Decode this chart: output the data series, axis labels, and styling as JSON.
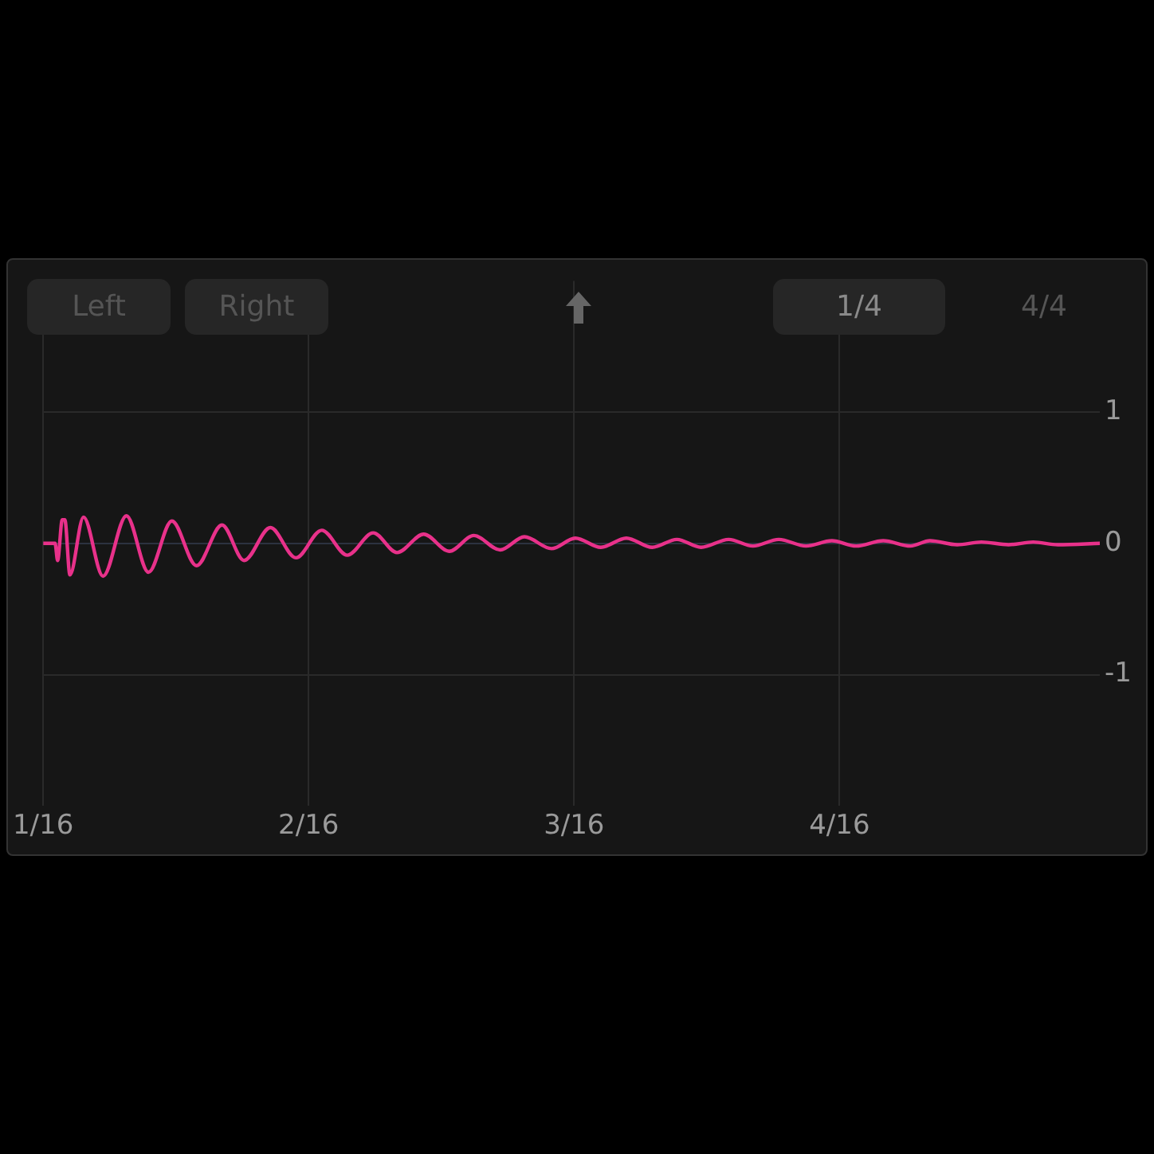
{
  "chart_data": {
    "type": "line",
    "annotations": [
      "Left",
      "Right",
      "1/4",
      "4/4"
    ],
    "x": [
      0.0625,
      0.0653,
      0.0659,
      0.067,
      0.0676,
      0.0688,
      0.072,
      0.0766,
      0.0821,
      0.0873,
      0.0928,
      0.0986,
      0.1046,
      0.1098,
      0.116,
      0.122,
      0.1281,
      0.1341,
      0.1402,
      0.1458,
      0.1521,
      0.1581,
      0.1639,
      0.1701,
      0.1758,
      0.1822,
      0.1878,
      0.1938,
      0.1998,
      0.2059,
      0.2117,
      0.2174,
      0.2239,
      0.2296,
      0.2357,
      0.2421,
      0.2482,
      0.2539,
      0.2603,
      0.2667,
      0.2713,
      0.2777,
      0.2834,
      0.2898,
      0.2956,
      0.3014,
      0.3113
    ],
    "series": [
      {
        "color": "#e8318a",
        "values": [
          0,
          0,
          -0.13,
          0.18,
          0.18,
          -0.24,
          0.2,
          -0.25,
          0.21,
          -0.22,
          0.17,
          -0.17,
          0.14,
          -0.13,
          0.12,
          -0.11,
          0.1,
          -0.09,
          0.08,
          -0.07,
          0.07,
          -0.06,
          0.06,
          -0.05,
          0.05,
          -0.04,
          0.04,
          -0.03,
          0.04,
          -0.03,
          0.03,
          -0.03,
          0.03,
          -0.02,
          0.03,
          -0.02,
          0.02,
          -0.02,
          0.02,
          -0.02,
          0.02,
          -0.01,
          0.01,
          -0.01,
          0.01,
          -0.01,
          0
        ]
      }
    ],
    "xlim": [
      0.0625,
      0.3113
    ],
    "xticks": [
      {
        "value": 0.0625,
        "label": "1/16"
      },
      {
        "value": 0.125,
        "label": "2/16"
      },
      {
        "value": 0.1875,
        "label": "3/16"
      },
      {
        "value": 0.25,
        "label": "4/16"
      }
    ],
    "ylim": [
      -2,
      2
    ],
    "yticks": [
      -1,
      0,
      1
    ],
    "grid": true,
    "legend": false,
    "marker": "none",
    "line_style": "solid"
  }
}
